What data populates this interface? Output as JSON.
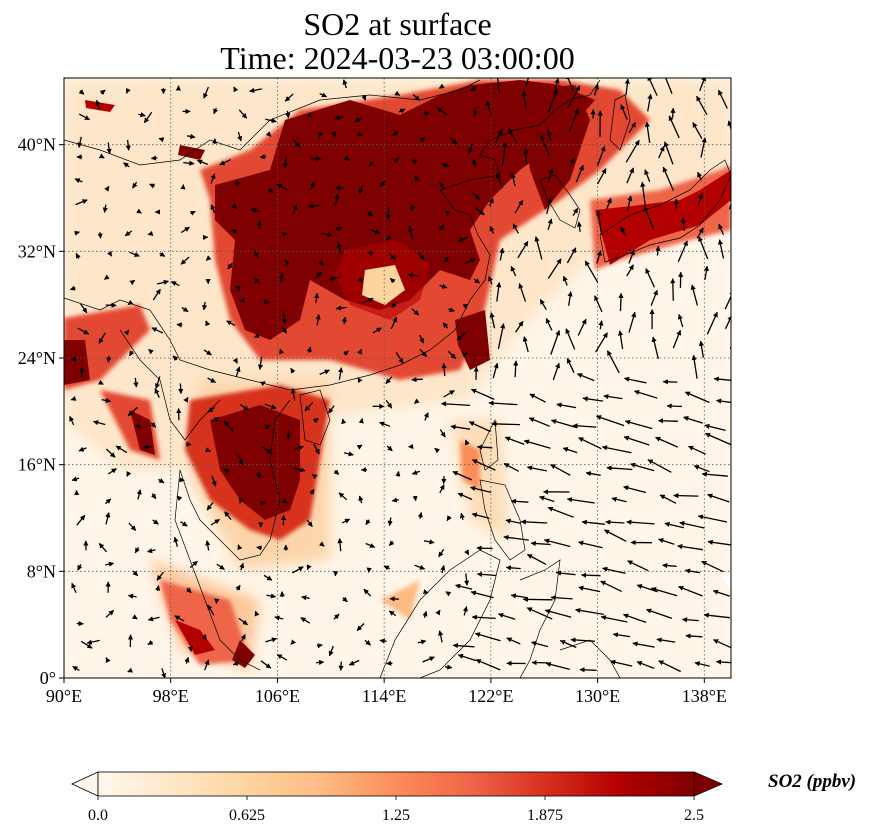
{
  "chart_data": {
    "type": "heatmap",
    "title": "SO2 at surface",
    "subtitle": "Time: 2024-03-23 03:00:00",
    "variable": "SO2",
    "colorbar_label": "SO2 (ppbv)",
    "colormap": "OrRd",
    "colorbar_range": [
      0.0,
      2.5
    ],
    "colorbar_extend": "both",
    "colorbar_ticks": [
      "0.0",
      "0.625",
      "1.25",
      "1.875",
      "2.5"
    ],
    "lon_range": [
      90,
      140
    ],
    "lat_range": [
      0,
      45
    ],
    "x_ticks": [
      "90°E",
      "98°E",
      "106°E",
      "114°E",
      "122°E",
      "130°E",
      "138°E"
    ],
    "y_ticks": [
      "0°",
      "8°N",
      "16°N",
      "24°N",
      "32°N",
      "40°N"
    ],
    "x_tick_values": [
      90,
      98,
      106,
      114,
      122,
      130,
      138
    ],
    "y_tick_values": [
      0,
      8,
      16,
      24,
      32,
      40
    ],
    "grid": true,
    "overlay": "wind vectors",
    "high_concentration_regions": [
      {
        "lon": [
          104,
          121
        ],
        "lat": [
          27,
          44
        ],
        "value": 2.5
      },
      {
        "lon": [
          101,
          110
        ],
        "lat": [
          13,
          22
        ],
        "value": 2.5
      },
      {
        "lon": [
          90,
          95
        ],
        "lat": [
          22,
          27
        ],
        "value": 2.5
      },
      {
        "lon": [
          123,
          130
        ],
        "lat": [
          36,
          45
        ],
        "value": 2.5
      },
      {
        "lon": [
          130,
          139
        ],
        "lat": [
          31,
          37
        ],
        "value": 2.0
      }
    ]
  },
  "colors": {
    "low": "#fff7ec",
    "mid": "#fc8d59",
    "high": "#7f0000"
  }
}
